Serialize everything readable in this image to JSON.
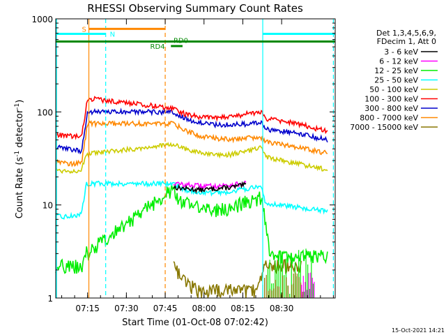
{
  "chart_data": {
    "type": "line",
    "title": "RHESSI Observing Summary Count Rates",
    "xlabel": "Start Time (01-Oct-08 07:02:42)",
    "ylabel_main": "Count Rate (s",
    "ylabel_exp1": "-1",
    "ylabel_mid": " detector",
    "ylabel_exp2": "-1",
    "ylabel_end": ")",
    "yscale": "log",
    "ylim": [
      1,
      1000
    ],
    "xlim_minutes": [
      0,
      108
    ],
    "x_ticks": [
      {
        "label": "07:15",
        "min": 12.3
      },
      {
        "label": "07:30",
        "min": 27.3
      },
      {
        "label": "07:45",
        "min": 42.3
      },
      {
        "label": "08:00",
        "min": 57.3
      },
      {
        "label": "08:15",
        "min": 72.3
      },
      {
        "label": "08:30",
        "min": 87.3
      }
    ],
    "y_ticks": [
      {
        "label": "1",
        "value": 1
      },
      {
        "label": "10",
        "value": 10
      },
      {
        "label": "100",
        "value": 100
      },
      {
        "label": "1000",
        "value": 1000
      }
    ],
    "legend_header": [
      "Det 1,3,4,5,6,9,",
      "FDecim 1, Att 0"
    ],
    "series": [
      {
        "name": "3 - 6 keV",
        "color": "#000000",
        "points": [
          [
            45.5,
            15.5
          ],
          [
            50,
            15
          ],
          [
            56,
            14.5
          ],
          [
            62,
            15
          ],
          [
            68,
            15.5
          ],
          [
            73.5,
            16.5
          ]
        ]
      },
      {
        "name": "6 - 12 keV",
        "color": "#ff00ff",
        "points": [
          [
            45.5,
            17
          ],
          [
            50,
            16.5
          ],
          [
            56,
            16
          ],
          [
            62,
            16
          ],
          [
            68,
            16.5
          ],
          [
            73.5,
            17
          ]
        ]
      },
      {
        "name": "12 - 25 keV",
        "color": "#00ee00",
        "points": [
          [
            0,
            2.2
          ],
          [
            5,
            2.2
          ],
          [
            10,
            2.2
          ],
          [
            11.5,
            3
          ],
          [
            45.5,
            15
          ],
          [
            48,
            11
          ],
          [
            52,
            10
          ],
          [
            56,
            9
          ],
          [
            60,
            8.7
          ],
          [
            64,
            8.9
          ],
          [
            68,
            9.5
          ],
          [
            72,
            10.5
          ],
          [
            73.5,
            11
          ],
          [
            79.5,
            12
          ],
          [
            83,
            2.8
          ],
          [
            85,
            2.8
          ],
          [
            95,
            2.8
          ],
          [
            105,
            2.8
          ]
        ]
      },
      {
        "name": "25 - 50 keV",
        "color": "#00ffff",
        "points": [
          [
            0,
            7.5
          ],
          [
            5,
            7.5
          ],
          [
            10,
            8
          ],
          [
            11.8,
            17
          ],
          [
            45.5,
            17
          ],
          [
            50,
            14.5
          ],
          [
            56,
            13.5
          ],
          [
            62,
            13.5
          ],
          [
            68,
            14
          ],
          [
            73.5,
            15
          ],
          [
            79.5,
            15.5
          ],
          [
            81,
            10.5
          ],
          [
            87,
            10
          ],
          [
            93,
            9.5
          ],
          [
            105,
            8.5
          ]
        ]
      },
      {
        "name": "50 - 100 keV",
        "color": "#cccc00",
        "points": [
          [
            0,
            24
          ],
          [
            5,
            23
          ],
          [
            10,
            24
          ],
          [
            11.8,
            35
          ],
          [
            45.5,
            45
          ],
          [
            50,
            40
          ],
          [
            56,
            36
          ],
          [
            62,
            34
          ],
          [
            68,
            35
          ],
          [
            73.5,
            38
          ],
          [
            79.5,
            41
          ],
          [
            81,
            33
          ],
          [
            87,
            30
          ],
          [
            93,
            28
          ],
          [
            105,
            24
          ]
        ]
      },
      {
        "name": "100 - 300 keV",
        "color": "#ff0000",
        "points": [
          [
            0,
            57
          ],
          [
            5,
            55
          ],
          [
            10,
            54
          ],
          [
            12.3,
            140
          ],
          [
            45.5,
            110
          ],
          [
            50,
            95
          ],
          [
            56,
            88
          ],
          [
            62,
            86
          ],
          [
            68,
            89
          ],
          [
            73.5,
            95
          ],
          [
            79.5,
            100
          ],
          [
            81,
            85
          ],
          [
            87,
            80
          ],
          [
            93,
            75
          ],
          [
            105,
            62
          ]
        ]
      },
      {
        "name": "300 - 800 keV",
        "color": "#0000cc",
        "points": [
          [
            0,
            42
          ],
          [
            5,
            40
          ],
          [
            10,
            38
          ],
          [
            12.3,
            100
          ],
          [
            45.5,
            100
          ],
          [
            50,
            85
          ],
          [
            56,
            76
          ],
          [
            62,
            73
          ],
          [
            68,
            73
          ],
          [
            73.5,
            74
          ],
          [
            79.5,
            76
          ],
          [
            81,
            65
          ],
          [
            87,
            62
          ],
          [
            93,
            59
          ],
          [
            105,
            50
          ]
        ]
      },
      {
        "name": "800 - 7000 keV",
        "color": "#ff8800",
        "points": [
          [
            0,
            30
          ],
          [
            5,
            28
          ],
          [
            10,
            28
          ],
          [
            12.3,
            75
          ],
          [
            45.5,
            75
          ],
          [
            50,
            63
          ],
          [
            56,
            55
          ],
          [
            62,
            52
          ],
          [
            68,
            51
          ],
          [
            73.5,
            52
          ],
          [
            79.5,
            53
          ],
          [
            81,
            48
          ],
          [
            87,
            45
          ],
          [
            93,
            42
          ],
          [
            105,
            36
          ]
        ]
      },
      {
        "name": "7000 - 15000 keV",
        "color": "#887700",
        "points": [
          [
            45.5,
            2.2
          ],
          [
            50,
            1.5
          ],
          [
            55,
            1.2
          ],
          [
            70,
            1.2
          ],
          [
            78,
            1.2
          ],
          [
            81,
            2.2
          ],
          [
            85,
            2.2
          ],
          [
            95,
            2.2
          ]
        ]
      }
    ],
    "annotations": [
      {
        "text": "S",
        "color": "#ff8800"
      },
      {
        "text": "N",
        "color": "#00ffff"
      },
      {
        "text": "RD4",
        "color": "#008800"
      },
      {
        "text": "RD0",
        "color": "#008800"
      }
    ],
    "markers": {
      "solid_orange": 12.8,
      "solid_cyan": [
        0.3,
        80
      ],
      "dashed_cyan": [
        19.3,
        107.3
      ],
      "dashed_orange": 42.3
    },
    "bars": {
      "S": {
        "start": 12.8,
        "end": 42.3,
        "value": 780,
        "color": "#ff8800"
      },
      "N": {
        "start": 0,
        "end": 19.3,
        "value": 690,
        "color": "#00ffff"
      },
      "N2": {
        "start": 80,
        "end": 108,
        "value": 690,
        "color": "#00ffff"
      },
      "RD": {
        "start": 0,
        "end": 108,
        "value": 570,
        "color": "#008800"
      },
      "RD4": {
        "start": 44.5,
        "end": 49,
        "value": 510,
        "color": "#008800"
      }
    },
    "grid": false,
    "legend_position": "right"
  },
  "footer": {
    "timestamp": "15-Oct-2021 14:21"
  }
}
